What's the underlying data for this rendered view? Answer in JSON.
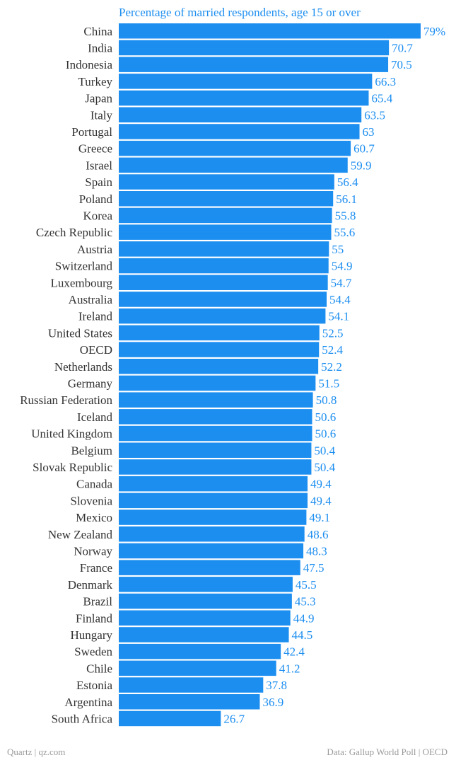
{
  "chart_data": {
    "type": "bar",
    "orientation": "horizontal",
    "title": "Percentage of married respondents, age 15 or over",
    "categories": [
      "China",
      "India",
      "Indonesia",
      "Turkey",
      "Japan",
      "Italy",
      "Portugal",
      "Greece",
      "Israel",
      "Spain",
      "Poland",
      "Korea",
      "Czech Republic",
      "Austria",
      "Switzerland",
      "Luxembourg",
      "Australia",
      "Ireland",
      "United States",
      "OECD",
      "Netherlands",
      "Germany",
      "Russian Federation",
      "Iceland",
      "United Kingdom",
      "Belgium",
      "Slovak Republic",
      "Canada",
      "Slovenia",
      "Mexico",
      "New Zealand",
      "Norway",
      "France",
      "Denmark",
      "Brazil",
      "Finland",
      "Hungary",
      "Sweden",
      "Chile",
      "Estonia",
      "Argentina",
      "South Africa"
    ],
    "values": [
      79,
      70.7,
      70.5,
      66.3,
      65.4,
      63.5,
      63,
      60.7,
      59.9,
      56.4,
      56.1,
      55.8,
      55.6,
      55,
      54.9,
      54.7,
      54.4,
      54.1,
      52.5,
      52.4,
      52.2,
      51.5,
      50.8,
      50.6,
      50.6,
      50.4,
      50.4,
      49.4,
      49.4,
      49.1,
      48.6,
      48.3,
      47.5,
      45.5,
      45.3,
      44.9,
      44.5,
      42.4,
      41.2,
      37.8,
      36.9,
      26.7
    ],
    "value_labels": [
      "79%",
      "70.7",
      "70.5",
      "66.3",
      "65.4",
      "63.5",
      "63",
      "60.7",
      "59.9",
      "56.4",
      "56.1",
      "55.8",
      "55.6",
      "55",
      "54.9",
      "54.7",
      "54.4",
      "54.1",
      "52.5",
      "52.4",
      "52.2",
      "51.5",
      "50.8",
      "50.6",
      "50.6",
      "50.4",
      "50.4",
      "49.4",
      "49.4",
      "49.1",
      "48.6",
      "48.3",
      "47.5",
      "45.5",
      "45.3",
      "44.9",
      "44.5",
      "42.4",
      "41.2",
      "37.8",
      "36.9",
      "26.7"
    ],
    "xlim": [
      0,
      79
    ],
    "grid": false,
    "legend": "none",
    "colors": {
      "bar": "#1c8ef0",
      "title": "#1c8ef0",
      "value_label": "#1c8ef0",
      "category_label": "#333333"
    }
  },
  "footer": {
    "source_left": "Quartz | qz.com",
    "source_right": "Data: Gallup World Poll | OECD"
  }
}
